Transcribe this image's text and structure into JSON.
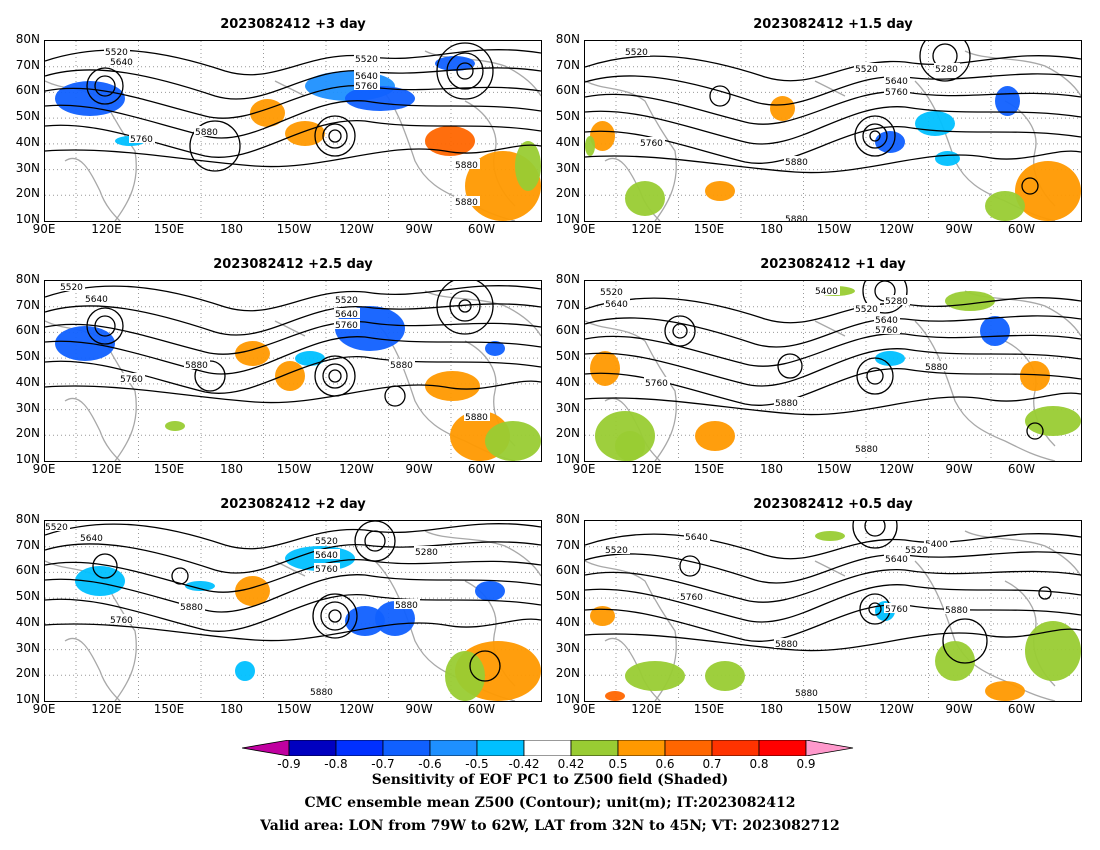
{
  "panels": [
    {
      "title": "2023082412 +3 day",
      "contours": [
        "5520",
        "5640",
        "5760",
        "5880",
        "5880",
        "5880",
        "5520",
        "5640",
        "5760"
      ]
    },
    {
      "title": "2023082412 +1.5 day",
      "contours": [
        "5520",
        "5520",
        "5640",
        "5760",
        "5280",
        "5760",
        "5880",
        "5880"
      ]
    },
    {
      "title": "2023082412 +2.5 day",
      "contours": [
        "5520",
        "5640",
        "5520",
        "5640",
        "5760",
        "5760",
        "5880",
        "5880",
        "5880"
      ]
    },
    {
      "title": "2023082412 +1 day",
      "contours": [
        "5520",
        "5640",
        "5400",
        "5280",
        "5520",
        "5640",
        "5760",
        "5760",
        "5880",
        "5880",
        "5880"
      ]
    },
    {
      "title": "2023082412 +2 day",
      "contours": [
        "5520",
        "5640",
        "5520",
        "5640",
        "5760",
        "5280",
        "5760",
        "5880",
        "5880",
        "5880"
      ]
    },
    {
      "title": "2023082412 +0.5 day",
      "contours": [
        "5520",
        "5640",
        "5400",
        "5520",
        "5640",
        "5760",
        "5760",
        "5880",
        "5880",
        "5880"
      ]
    }
  ],
  "lat_labels": [
    "80N",
    "70N",
    "60N",
    "50N",
    "40N",
    "30N",
    "20N",
    "10N"
  ],
  "lon_labels": [
    "90E",
    "120E",
    "150E",
    "180",
    "150W",
    "120W",
    "90W",
    "60W"
  ],
  "colorbar": {
    "ticks": [
      "-0.9",
      "-0.8",
      "-0.7",
      "-0.6",
      "-0.5",
      "-0.42",
      "0.42",
      "0.5",
      "0.6",
      "0.7",
      "0.8",
      "0.9"
    ],
    "colors": [
      "#0000c0",
      "#0030ff",
      "#1060ff",
      "#1e90ff",
      "#00c0ff",
      "#ffffff",
      "#99cc33",
      "#ff9900",
      "#ff6600",
      "#ff3300",
      "#ff0000"
    ],
    "low_end_color": "#c000a0",
    "high_end_color": "#ff99cc"
  },
  "caption": {
    "line1": "Sensitivity of EOF PC1 to Z500 field (Shaded)",
    "line2": "CMC ensemble mean Z500 (Contour); unit(m); IT:2023082412",
    "line3": "Valid area: LON from 79W to 62W, LAT from 32N to 45N; VT: 2023082712"
  }
}
